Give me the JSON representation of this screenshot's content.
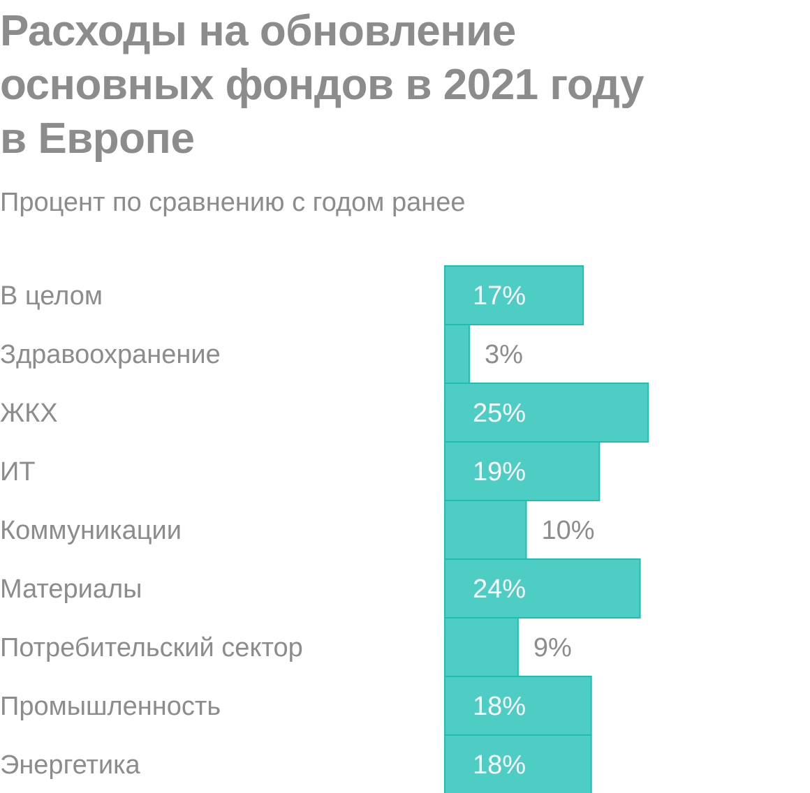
{
  "header": {
    "title_lines": [
      "Расходы на обновление",
      "основных фондов в 2021 году",
      "в Европе"
    ],
    "subtitle": "Процент по сравнению с годом ранее"
  },
  "colors": {
    "bar": "#4ecdc4",
    "bar_stroke": "#1fbfb0",
    "text_gray": "#8c8c8c",
    "text_on_bar": "#ffffff"
  },
  "chart_data": {
    "type": "bar",
    "orientation": "horizontal",
    "title": "Расходы на обновление основных фондов в 2021 году в Европе",
    "subtitle": "Процент по сравнению с годом ранее",
    "unit": "%",
    "categories": [
      "В целом",
      "Здравоохранение",
      "ЖКХ",
      "ИТ",
      "Коммуникации",
      "Материалы",
      "Потребительский сектор",
      "Промышленность",
      "Энергетика"
    ],
    "values": [
      17,
      3,
      25,
      19,
      10,
      24,
      9,
      18,
      18
    ],
    "value_labels": [
      "17%",
      "3%",
      "25%",
      "19%",
      "10%",
      "24%",
      "9%",
      "18%",
      "18%"
    ],
    "grid": false,
    "legend": "none"
  }
}
